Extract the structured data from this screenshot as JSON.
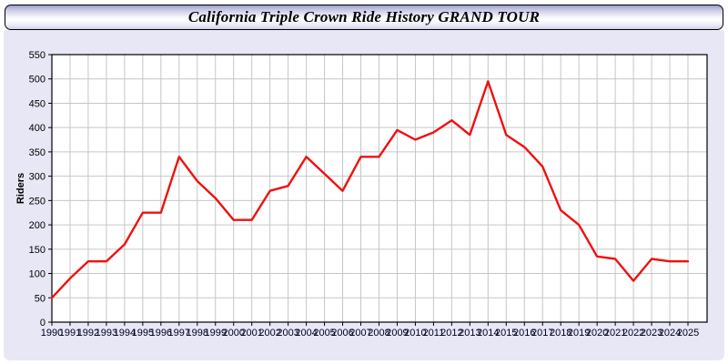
{
  "header": {
    "title": "California Triple Crown Ride History GRAND TOUR"
  },
  "chart_data": {
    "type": "line",
    "title": "California Triple Crown Ride History GRAND TOUR",
    "xlabel": "",
    "ylabel": "Riders",
    "x": [
      1990,
      1991,
      1992,
      1993,
      1994,
      1995,
      1996,
      1997,
      1998,
      1999,
      2000,
      2001,
      2002,
      2003,
      2004,
      2005,
      2006,
      2007,
      2008,
      2009,
      2010,
      2011,
      2012,
      2013,
      2014,
      2015,
      2016,
      2017,
      2018,
      2019,
      2020,
      2021,
      2022,
      2023,
      2024,
      2025
    ],
    "values": [
      50,
      90,
      125,
      125,
      160,
      225,
      225,
      340,
      290,
      255,
      210,
      210,
      270,
      280,
      340,
      305,
      270,
      340,
      340,
      395,
      375,
      390,
      415,
      385,
      495,
      385,
      360,
      320,
      230,
      200,
      135,
      130,
      85,
      130,
      125,
      125
    ],
    "ylim": [
      0,
      550
    ],
    "ytick_step": 50,
    "grid": true,
    "legend": "none",
    "line_color": "#ee1111",
    "plot_bg": "#ffffff",
    "grid_color": "#c6c6c6",
    "panel_bg": "#e7e7f5"
  }
}
